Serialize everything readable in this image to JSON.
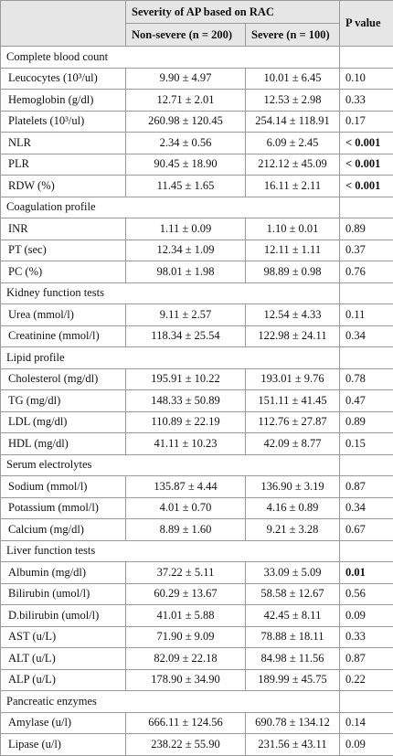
{
  "table": {
    "header": {
      "group": "Severity of AP based on RAC",
      "columns": [
        "Non-severe (n = 200)",
        "Severe (n = 100)"
      ],
      "p": "P value"
    },
    "sections": [
      {
        "title": "Complete blood count",
        "bold_rows": [
          3,
          4,
          5
        ],
        "rows": [
          [
            "Leucocytes (10³/ul)",
            "9.90 ± 4.97",
            "10.01 ± 6.45",
            "0.10"
          ],
          [
            "Hemoglobin (g/dl)",
            "12.71 ± 2.01",
            "12.53 ± 2.98",
            "0.33"
          ],
          [
            "Platelets (10³/ul)",
            "260.98 ± 120.45",
            "254.14 ± 118.91",
            "0.17"
          ],
          [
            "NLR",
            "2.34 ± 0.56",
            "6.09 ± 2.45",
            "< 0.001"
          ],
          [
            "PLR",
            "90.45 ± 18.90",
            "212.12 ± 45.09",
            "< 0.001"
          ],
          [
            "RDW (%)",
            "11.45 ± 1.65",
            "16.11 ± 2.11",
            "< 0.001"
          ]
        ]
      },
      {
        "title": "Coagulation profile",
        "bold_rows": [],
        "rows": [
          [
            "INR",
            "1.11 ± 0.09",
            "1.10 ± 0.01",
            "0.89"
          ],
          [
            "PT (sec)",
            "12.34 ± 1.09",
            "12.11 ± 1.11",
            "0.37"
          ],
          [
            "PC (%)",
            "98.01 ± 1.98",
            "98.89 ± 0.98",
            "0.76"
          ]
        ]
      },
      {
        "title": "Kidney function tests",
        "bold_rows": [],
        "rows": [
          [
            "Urea (mmol/l)",
            "9.11 ± 2.57",
            "12.54 ± 4.33",
            "0.11"
          ],
          [
            "Creatinine (mmol/l)",
            "118.34 ± 25.54",
            "122.98 ± 24.11",
            "0.34"
          ]
        ]
      },
      {
        "title": "Lipid profile",
        "bold_rows": [],
        "rows": [
          [
            "Cholesterol (mg/dl)",
            "195.91 ± 10.22",
            "193.01 ± 9.76",
            "0.78"
          ],
          [
            "TG (mg/dl)",
            "148.33 ± 50.89",
            "151.11 ± 41.45",
            "0.47"
          ],
          [
            "LDL (mg/dl)",
            "110.89 ± 22.19",
            "112.76 ± 27.87",
            "0.89"
          ],
          [
            "HDL (mg/dl)",
            "41.11 ± 10.23",
            "42.09 ± 8.77",
            "0.15"
          ]
        ]
      },
      {
        "title": "Serum electrolytes",
        "bold_rows": [],
        "rows": [
          [
            "Sodium (mmol/l)",
            "135.87 ± 4.44",
            "136.90 ± 3.19",
            "0.87"
          ],
          [
            "Potassium (mmol/l)",
            "4.01 ± 0.70",
            "4.16 ± 0.89",
            "0.34"
          ],
          [
            "Calcium (mg/dl)",
            "8.89 ± 1.60",
            "9.21 ± 3.28",
            "0.67"
          ]
        ]
      },
      {
        "title": "Liver function tests",
        "bold_rows": [
          0
        ],
        "rows": [
          [
            "Albumin (mg/dl)",
            "37.22 ± 5.11",
            "33.09 ± 5.09",
            "0.01"
          ],
          [
            "Bilirubin (umol/l)",
            "60.29 ± 13.67",
            "58.58 ± 12.67",
            "0.56"
          ],
          [
            "D.bilirubin (umol/l)",
            "41.01 ± 5.88",
            "42.45 ± 8.11",
            "0.09"
          ],
          [
            "AST (u/L)",
            "71.90 ± 9.09",
            "78.88 ± 18.11",
            "0.33"
          ],
          [
            "ALT (u/L)",
            "82.09 ± 22.18",
            "84.98 ± 11.56",
            "0.87"
          ],
          [
            "ALP (u/L)",
            "178.90 ± 34.90",
            "189.99 ± 45.75",
            "0.22"
          ]
        ]
      },
      {
        "title": "Pancreatic enzymes",
        "bold_rows": [],
        "rows": [
          [
            "Amylase (u/l)",
            "666.11 ± 124.56",
            "690.78 ± 134.12",
            "0.14"
          ],
          [
            "Lipase (u/l)",
            "238.22 ± 55.90",
            "231.56 ± 43.11",
            "0.09"
          ]
        ]
      }
    ]
  }
}
